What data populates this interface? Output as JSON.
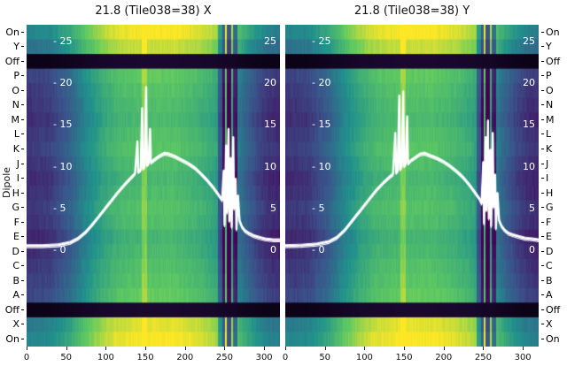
{
  "figure": {
    "y_axis_label": "Dipole"
  },
  "chart_data": {
    "type": "heatmap",
    "colormap": "viridis",
    "x_range": [
      0,
      320
    ],
    "x_ticks": [
      0,
      50,
      100,
      150,
      200,
      250,
      300
    ],
    "row_labels": [
      "On",
      "Y",
      "Off",
      "P",
      "O",
      "N",
      "M",
      "L",
      "K",
      "J",
      "I",
      "H",
      "G",
      "F",
      "E",
      "D",
      "C",
      "B",
      "A",
      "Off",
      "X",
      "On"
    ],
    "inner_left_labels": [
      "- 25",
      "- 20",
      "- 15",
      "- 10",
      "- 5",
      "- 0"
    ],
    "inner_right_labels": [
      "25",
      "20",
      "15",
      "10",
      "5",
      "0"
    ],
    "inner_values": [
      25,
      20,
      15,
      10,
      5,
      0
    ],
    "value_scale": {
      "zero_frac": 0.7,
      "per_unit_frac": 0.0259
    },
    "heatmap": {
      "base_profile": [
        [
          0,
          0.15
        ],
        [
          30,
          0.18
        ],
        [
          55,
          0.3
        ],
        [
          75,
          0.46
        ],
        [
          95,
          0.58
        ],
        [
          115,
          0.66
        ],
        [
          150,
          0.7
        ],
        [
          185,
          0.7
        ],
        [
          215,
          0.65
        ],
        [
          235,
          0.59
        ],
        [
          248,
          0.52
        ],
        [
          262,
          0.46
        ],
        [
          275,
          0.33
        ],
        [
          290,
          0.22
        ],
        [
          305,
          0.15
        ],
        [
          320,
          0.12
        ]
      ],
      "row_gains": [
        0.3,
        0.22,
        -9,
        0.05,
        0.02,
        0,
        -0.02,
        0.01,
        0.03,
        0,
        -0.03,
        -0.01,
        0.02,
        0,
        -0.04,
        -0.02,
        0.01,
        0.03,
        0.06,
        -9,
        0.26,
        0.3
      ],
      "stripes": [
        [
          146,
          152,
          0.12
        ],
        [
          242,
          247,
          -0.28
        ],
        [
          247,
          251,
          -0.5
        ],
        [
          251,
          253,
          0.18
        ],
        [
          253,
          259,
          -0.52
        ],
        [
          259,
          261,
          0.12
        ],
        [
          261,
          266,
          -0.38
        ]
      ]
    },
    "panels": [
      {
        "title": "21.8 (Tile038=38) X",
        "curve": [
          [
            0,
            0.5
          ],
          [
            20,
            0.5
          ],
          [
            40,
            0.6
          ],
          [
            55,
            0.9
          ],
          [
            65,
            1.4
          ],
          [
            75,
            2.2
          ],
          [
            85,
            3.3
          ],
          [
            95,
            4.5
          ],
          [
            105,
            5.7
          ],
          [
            115,
            6.9
          ],
          [
            125,
            8.0
          ],
          [
            132,
            8.7
          ],
          [
            137,
            9.2
          ],
          [
            140,
            13.0
          ],
          [
            141,
            9.4
          ],
          [
            144,
            9.6
          ],
          [
            146,
            17.0
          ],
          [
            147,
            9.8
          ],
          [
            149,
            10.0
          ],
          [
            151,
            19.5
          ],
          [
            152,
            10.2
          ],
          [
            154,
            10.4
          ],
          [
            156,
            14.5
          ],
          [
            157,
            10.5
          ],
          [
            162,
            10.9
          ],
          [
            168,
            11.3
          ],
          [
            174,
            11.6
          ],
          [
            180,
            11.5
          ],
          [
            188,
            11.2
          ],
          [
            196,
            10.8
          ],
          [
            204,
            10.4
          ],
          [
            212,
            9.9
          ],
          [
            220,
            9.2
          ],
          [
            228,
            8.4
          ],
          [
            236,
            7.5
          ],
          [
            242,
            6.7
          ],
          [
            247,
            6.0
          ],
          [
            249,
            9.5
          ],
          [
            250,
            3.0
          ],
          [
            252,
            12.5
          ],
          [
            253,
            4.5
          ],
          [
            255,
            14.5
          ],
          [
            256,
            3.5
          ],
          [
            258,
            11.0
          ],
          [
            259,
            2.8
          ],
          [
            261,
            13.5
          ],
          [
            262,
            5.0
          ],
          [
            264,
            8.5
          ],
          [
            265,
            2.5
          ],
          [
            267,
            6.5
          ],
          [
            269,
            3.5
          ],
          [
            272,
            2.8
          ],
          [
            276,
            2.3
          ],
          [
            281,
            2.0
          ],
          [
            287,
            1.7
          ],
          [
            294,
            1.5
          ],
          [
            302,
            1.3
          ],
          [
            312,
            1.2
          ],
          [
            320,
            1.2
          ]
        ]
      },
      {
        "title": "21.8 (Tile038=38) Y",
        "curve": [
          [
            0,
            0.5
          ],
          [
            20,
            0.55
          ],
          [
            40,
            0.7
          ],
          [
            55,
            1.0
          ],
          [
            65,
            1.5
          ],
          [
            75,
            2.4
          ],
          [
            85,
            3.6
          ],
          [
            95,
            4.8
          ],
          [
            105,
            6.0
          ],
          [
            115,
            7.2
          ],
          [
            125,
            8.2
          ],
          [
            132,
            8.8
          ],
          [
            136,
            9.1
          ],
          [
            139,
            14.0
          ],
          [
            140,
            9.3
          ],
          [
            142,
            9.5
          ],
          [
            144,
            18.5
          ],
          [
            145,
            9.7
          ],
          [
            147,
            10.0
          ],
          [
            149,
            19.0
          ],
          [
            150,
            10.1
          ],
          [
            152,
            10.3
          ],
          [
            154,
            16.0
          ],
          [
            155,
            10.4
          ],
          [
            158,
            10.7
          ],
          [
            164,
            11.1
          ],
          [
            170,
            11.5
          ],
          [
            176,
            11.6
          ],
          [
            184,
            11.3
          ],
          [
            192,
            11.0
          ],
          [
            200,
            10.6
          ],
          [
            208,
            10.1
          ],
          [
            216,
            9.5
          ],
          [
            224,
            8.8
          ],
          [
            232,
            7.9
          ],
          [
            239,
            7.0
          ],
          [
            245,
            6.2
          ],
          [
            248,
            5.6
          ],
          [
            250,
            10.5
          ],
          [
            251,
            3.2
          ],
          [
            253,
            13.5
          ],
          [
            254,
            4.8
          ],
          [
            256,
            15.5
          ],
          [
            257,
            3.8
          ],
          [
            259,
            12.0
          ],
          [
            260,
            2.9
          ],
          [
            262,
            14.0
          ],
          [
            263,
            5.2
          ],
          [
            265,
            9.0
          ],
          [
            266,
            2.6
          ],
          [
            268,
            6.8
          ],
          [
            270,
            3.6
          ],
          [
            273,
            2.9
          ],
          [
            277,
            2.4
          ],
          [
            282,
            2.0
          ],
          [
            288,
            1.8
          ],
          [
            295,
            1.6
          ],
          [
            303,
            1.4
          ],
          [
            313,
            1.3
          ],
          [
            320,
            1.2
          ]
        ]
      }
    ]
  }
}
